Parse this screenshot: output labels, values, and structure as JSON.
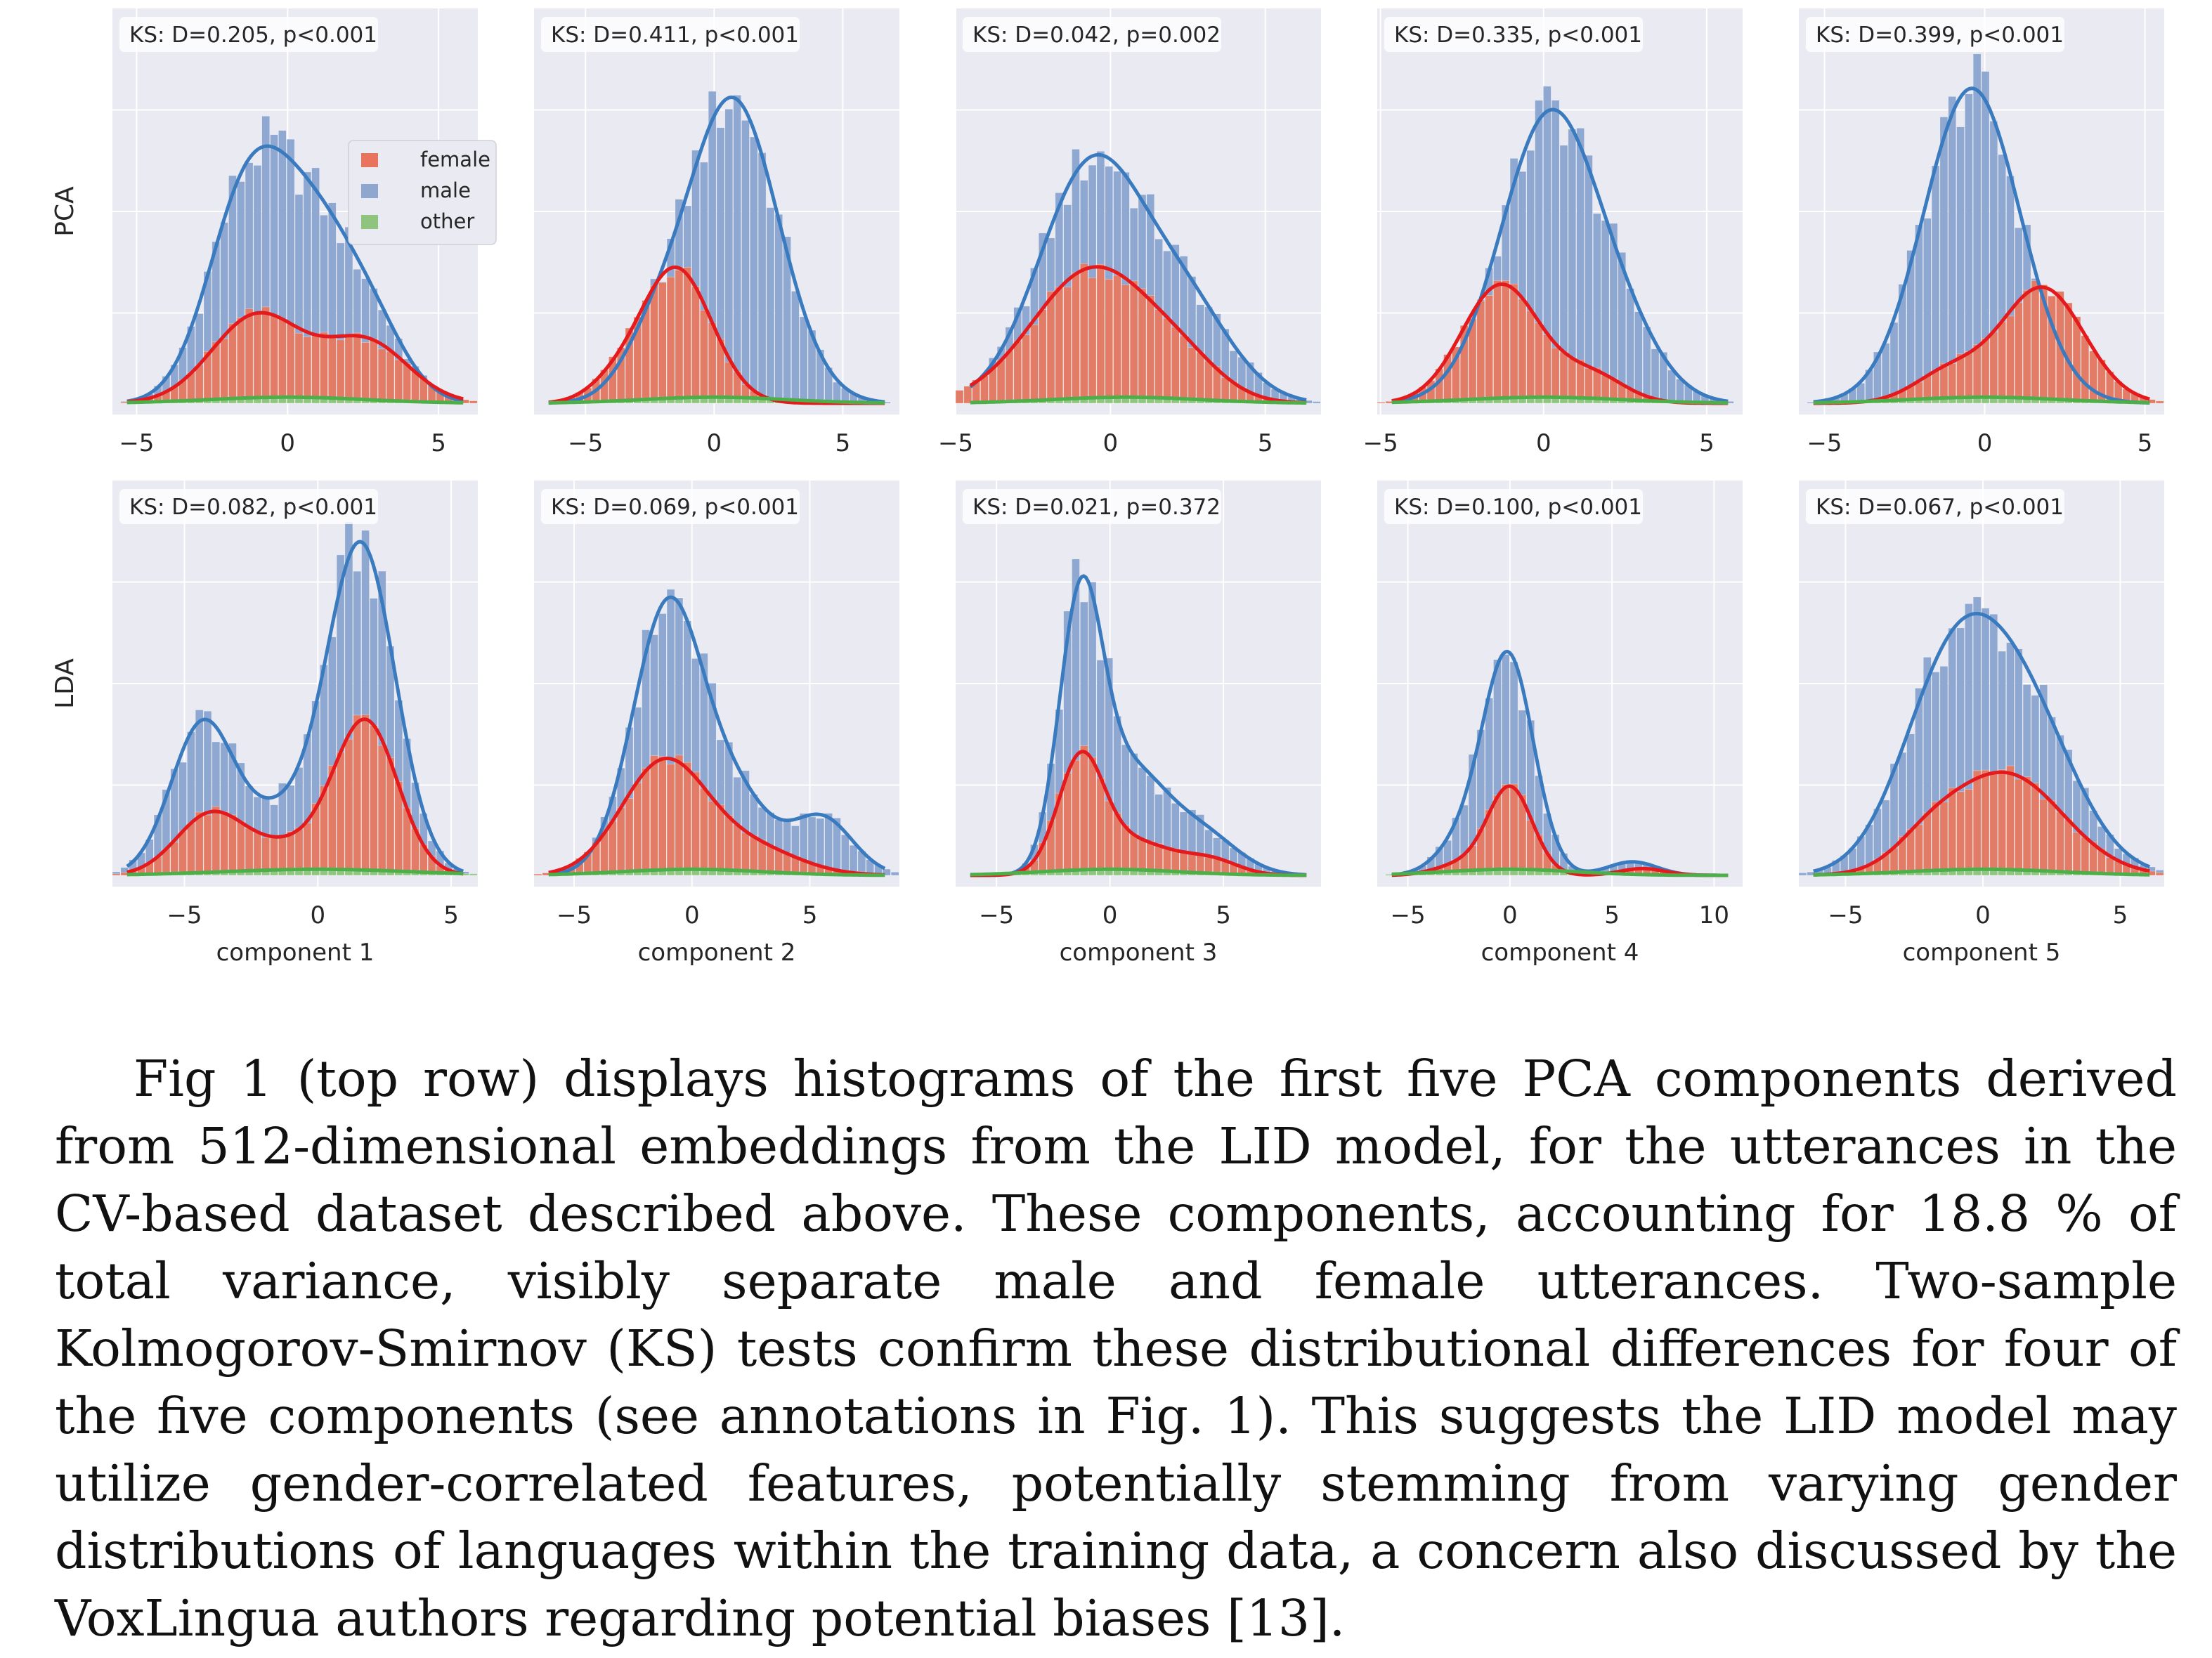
{
  "figure": {
    "row_labels": [
      "PCA",
      "LDA"
    ],
    "legend": [
      {
        "label": "female",
        "color": "#e8745d"
      },
      {
        "label": "male",
        "color": "#8da7cf"
      },
      {
        "label": "other",
        "color": "#8fc47e"
      }
    ],
    "colors": {
      "panel_bg": "#eaeaf2",
      "grid": "#ffffff",
      "female_bar": "#e27c67",
      "male_bar": "#8ea8d1",
      "other_bar": "#91c582",
      "female_line": "#e41a1c",
      "male_line": "#3a7bbf",
      "other_line": "#4daf4a"
    }
  },
  "chart_data": [
    {
      "type": "bar",
      "row": "PCA",
      "component": 1,
      "annotation": "KS: D=0.205, p<0.001",
      "xlabel": "",
      "xlim": [
        -5.8,
        6.3
      ],
      "xticks": [
        -5,
        0,
        5
      ],
      "series": [
        {
          "name": "male",
          "peaks": [
            {
              "mu": -1.4,
              "sigma": 1.3,
              "h": 0.55
            },
            {
              "mu": 0.9,
              "sigma": 1.5,
              "h": 0.5
            },
            {
              "mu": 3.0,
              "sigma": 1.1,
              "h": 0.12
            }
          ]
        },
        {
          "name": "female",
          "peaks": [
            {
              "mu": -1.0,
              "sigma": 1.5,
              "h": 0.26
            },
            {
              "mu": 2.6,
              "sigma": 1.4,
              "h": 0.18
            }
          ]
        },
        {
          "name": "other",
          "peaks": [
            {
              "mu": 0.0,
              "sigma": 2.6,
              "h": 0.018
            }
          ]
        }
      ]
    },
    {
      "type": "bar",
      "row": "PCA",
      "component": 2,
      "annotation": "KS: D=0.411, p<0.001",
      "xlabel": "",
      "xlim": [
        -7.0,
        7.2
      ],
      "xticks": [
        -5,
        0,
        5
      ],
      "series": [
        {
          "name": "male",
          "peaks": [
            {
              "mu": 0.7,
              "sigma": 1.8,
              "h": 0.9
            },
            {
              "mu": -2.5,
              "sigma": 1.2,
              "h": 0.12
            }
          ]
        },
        {
          "name": "female",
          "peaks": [
            {
              "mu": -1.5,
              "sigma": 1.4,
              "h": 0.4
            },
            {
              "mu": -4.0,
              "sigma": 1.0,
              "h": 0.04
            }
          ]
        },
        {
          "name": "other",
          "peaks": [
            {
              "mu": 0.0,
              "sigma": 2.8,
              "h": 0.018
            }
          ]
        }
      ]
    },
    {
      "type": "bar",
      "row": "PCA",
      "component": 3,
      "annotation": "KS: D=0.042, p=0.002",
      "xlabel": "",
      "xlim": [
        -5.0,
        6.8
      ],
      "xticks": [
        -5,
        0,
        5
      ],
      "series": [
        {
          "name": "male",
          "peaks": [
            {
              "mu": -0.6,
              "sigma": 1.7,
              "h": 0.7
            },
            {
              "mu": 2.5,
              "sigma": 1.5,
              "h": 0.25
            }
          ]
        },
        {
          "name": "female",
          "peaks": [
            {
              "mu": -0.5,
              "sigma": 2.0,
              "h": 0.4
            },
            {
              "mu": 2.5,
              "sigma": 1.2,
              "h": 0.06
            }
          ]
        },
        {
          "name": "other",
          "peaks": [
            {
              "mu": 0.5,
              "sigma": 2.4,
              "h": 0.018
            }
          ]
        }
      ]
    },
    {
      "type": "bar",
      "row": "PCA",
      "component": 4,
      "annotation": "KS: D=0.335, p<0.001",
      "xlabel": "",
      "xlim": [
        -5.1,
        6.1
      ],
      "xticks": [
        -5,
        0,
        5
      ],
      "series": [
        {
          "name": "male",
          "peaks": [
            {
              "mu": 0.2,
              "sigma": 1.5,
              "h": 0.85
            },
            {
              "mu": 2.6,
              "sigma": 1.2,
              "h": 0.12
            }
          ]
        },
        {
          "name": "female",
          "peaks": [
            {
              "mu": -1.3,
              "sigma": 1.2,
              "h": 0.35
            },
            {
              "mu": 1.5,
              "sigma": 1.0,
              "h": 0.08
            }
          ]
        },
        {
          "name": "other",
          "peaks": [
            {
              "mu": 0.0,
              "sigma": 2.4,
              "h": 0.018
            }
          ]
        }
      ]
    },
    {
      "type": "bar",
      "row": "PCA",
      "component": 5,
      "annotation": "KS: D=0.399, p<0.001",
      "xlabel": "",
      "xlim": [
        -5.8,
        5.6
      ],
      "xticks": [
        -5,
        0,
        5
      ],
      "series": [
        {
          "name": "male",
          "peaks": [
            {
              "mu": -0.4,
              "sigma": 1.5,
              "h": 0.93
            }
          ]
        },
        {
          "name": "female",
          "peaks": [
            {
              "mu": 1.8,
              "sigma": 1.3,
              "h": 0.34
            },
            {
              "mu": -1.1,
              "sigma": 1.1,
              "h": 0.09
            }
          ]
        },
        {
          "name": "other",
          "peaks": [
            {
              "mu": 0.0,
              "sigma": 2.4,
              "h": 0.018
            }
          ]
        }
      ]
    },
    {
      "type": "bar",
      "row": "LDA",
      "component": 1,
      "annotation": "KS: D=0.082, p<0.001",
      "xlabel": "component 1",
      "xlim": [
        -7.7,
        6.0
      ],
      "xticks": [
        -5,
        0,
        5
      ],
      "series": [
        {
          "name": "male",
          "peaks": [
            {
              "mu": -4.3,
              "sigma": 1.2,
              "h": 0.45
            },
            {
              "mu": 1.6,
              "sigma": 1.3,
              "h": 0.98
            },
            {
              "mu": -1.5,
              "sigma": 1.2,
              "h": 0.15
            }
          ]
        },
        {
          "name": "female",
          "peaks": [
            {
              "mu": -4.0,
              "sigma": 1.3,
              "h": 0.18
            },
            {
              "mu": 1.8,
              "sigma": 1.2,
              "h": 0.45
            },
            {
              "mu": -1.0,
              "sigma": 1.4,
              "h": 0.08
            }
          ]
        },
        {
          "name": "other",
          "peaks": [
            {
              "mu": 0.0,
              "sigma": 3.5,
              "h": 0.018
            }
          ]
        }
      ]
    },
    {
      "type": "bar",
      "row": "LDA",
      "component": 2,
      "annotation": "KS: D=0.069, p<0.001",
      "xlabel": "component 2",
      "xlim": [
        -6.7,
        8.8
      ],
      "xticks": [
        -5,
        0,
        5
      ],
      "series": [
        {
          "name": "male",
          "peaks": [
            {
              "mu": -1.0,
              "sigma": 1.5,
              "h": 0.8
            },
            {
              "mu": 2.0,
              "sigma": 1.4,
              "h": 0.2
            },
            {
              "mu": 5.5,
              "sigma": 1.3,
              "h": 0.17
            }
          ]
        },
        {
          "name": "female",
          "peaks": [
            {
              "mu": -1.2,
              "sigma": 1.8,
              "h": 0.33
            },
            {
              "mu": 2.5,
              "sigma": 2.0,
              "h": 0.08
            }
          ]
        },
        {
          "name": "other",
          "peaks": [
            {
              "mu": 0.0,
              "sigma": 3.0,
              "h": 0.018
            }
          ]
        }
      ]
    },
    {
      "type": "bar",
      "row": "LDA",
      "component": 3,
      "annotation": "KS: D=0.021, p=0.372",
      "xlabel": "component 3",
      "xlim": [
        -6.8,
        9.3
      ],
      "xticks": [
        -5,
        0,
        5
      ],
      "series": [
        {
          "name": "male",
          "peaks": [
            {
              "mu": -1.3,
              "sigma": 0.95,
              "h": 0.75
            },
            {
              "mu": 0.8,
              "sigma": 1.6,
              "h": 0.3
            },
            {
              "mu": 4.0,
              "sigma": 1.6,
              "h": 0.12
            }
          ]
        },
        {
          "name": "female",
          "peaks": [
            {
              "mu": -1.3,
              "sigma": 1.0,
              "h": 0.32
            },
            {
              "mu": 1.0,
              "sigma": 1.8,
              "h": 0.1
            },
            {
              "mu": 4.5,
              "sigma": 1.2,
              "h": 0.04
            }
          ]
        },
        {
          "name": "other",
          "peaks": [
            {
              "mu": 0.0,
              "sigma": 3.0,
              "h": 0.018
            }
          ]
        }
      ]
    },
    {
      "type": "bar",
      "row": "LDA",
      "component": 4,
      "annotation": "KS: D=0.100, p<0.001",
      "xlabel": "component 4",
      "xlim": [
        -6.5,
        11.4
      ],
      "xticks": [
        -5,
        0,
        5,
        10
      ],
      "series": [
        {
          "name": "male",
          "peaks": [
            {
              "mu": -0.1,
              "sigma": 1.25,
              "h": 0.65
            },
            {
              "mu": -2.5,
              "sigma": 1.2,
              "h": 0.08
            },
            {
              "mu": 6.0,
              "sigma": 1.2,
              "h": 0.04
            }
          ]
        },
        {
          "name": "female",
          "peaks": [
            {
              "mu": 0.0,
              "sigma": 1.1,
              "h": 0.26
            },
            {
              "mu": -2.5,
              "sigma": 1.2,
              "h": 0.03
            },
            {
              "mu": 6.5,
              "sigma": 1.1,
              "h": 0.02
            }
          ]
        },
        {
          "name": "other",
          "peaks": [
            {
              "mu": 0.0,
              "sigma": 3.2,
              "h": 0.018
            }
          ]
        }
      ]
    },
    {
      "type": "bar",
      "row": "LDA",
      "component": 5,
      "annotation": "KS: D=0.067, p<0.001",
      "xlabel": "component 5",
      "xlim": [
        -6.7,
        6.6
      ],
      "xticks": [
        -5,
        0,
        5
      ],
      "series": [
        {
          "name": "male",
          "peaks": [
            {
              "mu": -1.2,
              "sigma": 1.8,
              "h": 0.55
            },
            {
              "mu": 1.5,
              "sigma": 1.9,
              "h": 0.45
            }
          ]
        },
        {
          "name": "female",
          "peaks": [
            {
              "mu": 0.8,
              "sigma": 2.1,
              "h": 0.3
            },
            {
              "mu": -2.0,
              "sigma": 1.2,
              "h": 0.06
            }
          ]
        },
        {
          "name": "other",
          "peaks": [
            {
              "mu": 0.0,
              "sigma": 2.8,
              "h": 0.018
            }
          ]
        }
      ]
    }
  ],
  "paragraph": "Fig 1 (top row) displays histograms of the first five PCA components derived from 512-dimensional embeddings from the LID model, for the utterances in the CV-based dataset described above. These components, accounting for 18.8 % of total variance, visibly separate male and female utterances. Two-sample Kolmogorov-Smirnov (KS) tests confirm these distributional differences for four of the five components (see annotations in Fig. 1). This suggests the LID model may utilize gender-correlated features, potentially stemming from varying gender distributions of languages within the training data, a concern also discussed by the VoxLingua authors regarding potential biases [13]."
}
